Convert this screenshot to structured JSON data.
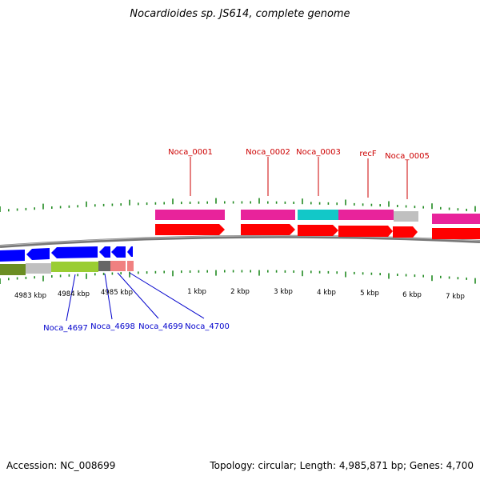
{
  "title": "Nocardioides sp. JS614, complete genome",
  "footer": {
    "accession": "Accession: NC_008699",
    "summary": "Topology: circular; Length: 4,985,871 bp; Genes: 4,700"
  },
  "scale_labels": [
    "4983 kbp",
    "4984 kbp",
    "4985 kbp",
    "1 kbp",
    "2 kbp",
    "3 kbp",
    "4 kbp",
    "5 kbp",
    "6 kbp",
    "7 kbp"
  ],
  "forward_genes": [
    "Noca_0001",
    "Noca_0002",
    "Noca_0003",
    "recF",
    "Noca_0005"
  ],
  "reverse_genes": [
    "Noca_4697",
    "Noca_4698",
    "Noca_4699",
    "Noca_4700"
  ],
  "colors": {
    "forward_label": "#cc0000",
    "reverse_label": "#0000cc",
    "cds_forward": "#ff0000",
    "cds_reverse": "#0000ff",
    "tick": "#228b22",
    "backbone": "#777777",
    "magenta": "#e8239b",
    "cyan": "#12c8c8",
    "gray": "#c0c0c0",
    "lime": "#9acd32",
    "olive": "#6b8e23",
    "dark_gray": "#666666",
    "salmon": "#f08080"
  }
}
